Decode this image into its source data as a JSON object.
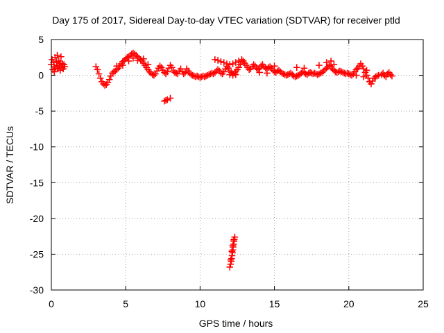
{
  "chart_data": {
    "type": "scatter",
    "title": "Day 175 of 2017, Sidereal Day-to-day VTEC variation (SDTVAR) for receiver ptld",
    "xlabel": "GPS time / hours",
    "ylabel": "SDTVAR / TECUs",
    "xlim": [
      0,
      25
    ],
    "ylim": [
      -30,
      5
    ],
    "xticks": [
      0,
      5,
      10,
      15,
      20,
      25
    ],
    "yticks": [
      5,
      0,
      -5,
      -10,
      -15,
      -20,
      -25,
      -30
    ],
    "xtick_labels": [
      "0",
      "5",
      "10",
      "15",
      "20",
      "25"
    ],
    "ytick_labels": [
      "5",
      "0",
      "-5",
      "-10",
      "-15",
      "-20",
      "-25",
      "-30"
    ],
    "grid": true,
    "marker": "+",
    "marker_color": "#ff0000",
    "series": [
      {
        "name": "ptld",
        "points": [
          [
            0.0,
            1.5
          ],
          [
            0.05,
            2.2
          ],
          [
            0.1,
            0.8
          ],
          [
            0.15,
            1.8
          ],
          [
            0.2,
            1.2
          ],
          [
            0.25,
            2.5
          ],
          [
            0.3,
            1.0
          ],
          [
            0.35,
            1.9
          ],
          [
            0.4,
            1.4
          ],
          [
            0.45,
            0.9
          ],
          [
            0.5,
            2.0
          ],
          [
            0.55,
            1.3
          ],
          [
            0.6,
            1.7
          ],
          [
            0.65,
            2.6
          ],
          [
            0.7,
            1.1
          ],
          [
            0.75,
            1.6
          ],
          [
            0.8,
            0.9
          ],
          [
            0.85,
            1.5
          ],
          [
            0.9,
            1.2
          ],
          [
            0.2,
            0.5
          ],
          [
            0.4,
            2.8
          ],
          [
            0.6,
            0.7
          ],
          [
            3.0,
            1.2
          ],
          [
            3.1,
            0.8
          ],
          [
            3.2,
            0.2
          ],
          [
            3.3,
            -0.4
          ],
          [
            3.4,
            -0.9
          ],
          [
            3.5,
            -1.2
          ],
          [
            3.6,
            -1.4
          ],
          [
            3.7,
            -1.3
          ],
          [
            3.8,
            -1.0
          ],
          [
            3.9,
            -0.6
          ],
          [
            4.0,
            -0.1
          ],
          [
            4.1,
            0.3
          ],
          [
            4.2,
            0.5
          ],
          [
            4.3,
            0.6
          ],
          [
            4.4,
            0.8
          ],
          [
            4.5,
            1.0
          ],
          [
            4.6,
            1.3
          ],
          [
            4.7,
            1.6
          ],
          [
            4.8,
            1.9
          ],
          [
            4.9,
            2.1
          ],
          [
            5.0,
            2.3
          ],
          [
            5.1,
            2.5
          ],
          [
            5.2,
            2.6
          ],
          [
            5.3,
            2.8
          ],
          [
            5.4,
            3.0
          ],
          [
            5.5,
            3.1
          ],
          [
            5.6,
            3.0
          ],
          [
            5.7,
            2.8
          ],
          [
            5.8,
            2.6
          ],
          [
            5.9,
            2.4
          ],
          [
            6.0,
            2.2
          ],
          [
            6.1,
            2.0
          ],
          [
            6.2,
            1.7
          ],
          [
            6.3,
            1.4
          ],
          [
            6.4,
            1.1
          ],
          [
            6.5,
            0.8
          ],
          [
            6.6,
            0.5
          ],
          [
            6.7,
            0.3
          ],
          [
            6.8,
            0.1
          ],
          [
            6.9,
            0.0
          ],
          [
            7.0,
            0.2
          ],
          [
            7.1,
            0.6
          ],
          [
            7.2,
            1.0
          ],
          [
            7.3,
            1.3
          ],
          [
            7.4,
            1.1
          ],
          [
            7.5,
            0.7
          ],
          [
            7.6,
            0.4
          ],
          [
            7.7,
            0.2
          ],
          [
            7.8,
            0.5
          ],
          [
            7.9,
            1.0
          ],
          [
            8.0,
            1.4
          ],
          [
            8.1,
            1.1
          ],
          [
            8.2,
            0.6
          ],
          [
            8.3,
            0.4
          ],
          [
            8.4,
            0.3
          ],
          [
            5.2,
            2.0
          ],
          [
            5.5,
            2.4
          ],
          [
            5.8,
            2.1
          ],
          [
            6.2,
            2.3
          ],
          [
            6.5,
            1.5
          ],
          [
            4.8,
            1.4
          ],
          [
            4.4,
            1.3
          ],
          [
            7.6,
            -3.6
          ],
          [
            7.8,
            -3.4
          ],
          [
            8.0,
            -3.2
          ],
          [
            7.7,
            -3.5
          ],
          [
            8.5,
            0.2
          ],
          [
            8.6,
            0.6
          ],
          [
            8.7,
            0.9
          ],
          [
            8.8,
            0.5
          ],
          [
            8.9,
            0.2
          ],
          [
            9.0,
            0.4
          ],
          [
            9.1,
            0.9
          ],
          [
            9.2,
            0.6
          ],
          [
            9.3,
            0.3
          ],
          [
            9.4,
            0.1
          ],
          [
            9.5,
            0.0
          ],
          [
            9.6,
            -0.1
          ],
          [
            9.7,
            -0.2
          ],
          [
            9.8,
            -0.1
          ],
          [
            9.9,
            -0.2
          ],
          [
            10.0,
            -0.3
          ],
          [
            10.1,
            -0.2
          ],
          [
            10.2,
            -0.1
          ],
          [
            10.3,
            -0.2
          ],
          [
            10.4,
            -0.1
          ],
          [
            10.5,
            0.0
          ],
          [
            10.6,
            0.1
          ],
          [
            10.7,
            0.2
          ],
          [
            10.8,
            0.3
          ],
          [
            10.9,
            0.2
          ],
          [
            11.0,
            0.4
          ],
          [
            11.1,
            0.6
          ],
          [
            11.2,
            0.8
          ],
          [
            11.3,
            0.6
          ],
          [
            11.4,
            0.3
          ],
          [
            11.5,
            0.2
          ],
          [
            11.6,
            0.5
          ],
          [
            11.7,
            0.9
          ],
          [
            11.8,
            1.2
          ],
          [
            11.9,
            1.0
          ],
          [
            12.0,
            0.6
          ],
          [
            12.1,
            0.4
          ],
          [
            12.2,
            0.2
          ],
          [
            12.3,
            0.3
          ],
          [
            12.4,
            0.5
          ],
          [
            12.5,
            0.8
          ],
          [
            12.6,
            1.1
          ],
          [
            12.7,
            1.5
          ],
          [
            12.8,
            1.9
          ],
          [
            12.9,
            2.0
          ],
          [
            13.0,
            1.7
          ],
          [
            11.0,
            2.2
          ],
          [
            11.2,
            2.1
          ],
          [
            11.4,
            1.9
          ],
          [
            11.6,
            1.8
          ],
          [
            11.8,
            1.6
          ],
          [
            12.0,
            1.5
          ],
          [
            12.2,
            1.6
          ],
          [
            12.4,
            1.8
          ],
          [
            12.6,
            2.0
          ],
          [
            12.8,
            2.2
          ],
          [
            12.0,
            0.1
          ],
          [
            12.2,
            0.0
          ],
          [
            12.4,
            0.1
          ],
          [
            13.1,
            1.4
          ],
          [
            13.2,
            1.1
          ],
          [
            13.3,
            0.8
          ],
          [
            13.4,
            0.9
          ],
          [
            13.5,
            1.2
          ],
          [
            13.6,
            1.5
          ],
          [
            13.7,
            1.3
          ],
          [
            13.8,
            1.0
          ],
          [
            13.9,
            0.8
          ],
          [
            14.0,
            1.0
          ],
          [
            14.1,
            1.3
          ],
          [
            14.2,
            1.5
          ],
          [
            14.3,
            1.2
          ],
          [
            14.4,
            1.0
          ],
          [
            14.5,
            0.9
          ],
          [
            14.6,
            1.1
          ],
          [
            14.7,
            1.2
          ],
          [
            14.8,
            1.0
          ],
          [
            14.9,
            0.7
          ],
          [
            15.0,
            0.5
          ],
          [
            15.1,
            0.4
          ],
          [
            15.2,
            0.6
          ],
          [
            15.3,
            0.7
          ],
          [
            15.4,
            0.5
          ],
          [
            15.5,
            0.3
          ],
          [
            15.6,
            0.2
          ],
          [
            15.7,
            0.1
          ],
          [
            15.8,
            0.0
          ],
          [
            15.9,
            0.1
          ],
          [
            16.0,
            0.2
          ],
          [
            16.1,
            0.3
          ],
          [
            16.2,
            0.1
          ],
          [
            16.3,
            -0.1
          ],
          [
            16.4,
            -0.2
          ],
          [
            16.5,
            -0.1
          ],
          [
            16.6,
            0.0
          ],
          [
            16.7,
            0.1
          ],
          [
            16.8,
            0.3
          ],
          [
            16.9,
            0.5
          ],
          [
            17.0,
            0.4
          ],
          [
            17.1,
            0.2
          ],
          [
            17.2,
            0.1
          ],
          [
            17.3,
            0.3
          ],
          [
            17.4,
            0.4
          ],
          [
            17.5,
            0.3
          ],
          [
            17.6,
            0.2
          ],
          [
            17.7,
            0.3
          ],
          [
            17.8,
            0.2
          ],
          [
            17.9,
            0.1
          ],
          [
            18.0,
            0.2
          ],
          [
            18.1,
            0.3
          ],
          [
            18.2,
            0.4
          ],
          [
            18.3,
            0.6
          ],
          [
            18.4,
            0.8
          ],
          [
            18.5,
            1.0
          ],
          [
            18.6,
            1.2
          ],
          [
            18.7,
            1.4
          ],
          [
            18.8,
            1.2
          ],
          [
            18.9,
            0.9
          ],
          [
            19.0,
            0.7
          ],
          [
            19.1,
            0.5
          ],
          [
            19.2,
            0.4
          ],
          [
            19.3,
            0.5
          ],
          [
            19.4,
            0.6
          ],
          [
            19.5,
            0.5
          ],
          [
            19.6,
            0.4
          ],
          [
            19.7,
            0.3
          ],
          [
            19.8,
            0.2
          ],
          [
            19.9,
            0.3
          ],
          [
            20.0,
            0.2
          ],
          [
            20.1,
            0.1
          ],
          [
            20.2,
            0.0
          ],
          [
            20.3,
            0.2
          ],
          [
            20.4,
            0.5
          ],
          [
            20.5,
            0.8
          ],
          [
            20.6,
            1.0
          ],
          [
            20.7,
            1.3
          ],
          [
            20.8,
            1.6
          ],
          [
            20.9,
            1.3
          ],
          [
            21.0,
            0.9
          ],
          [
            21.1,
            0.4
          ],
          [
            21.2,
            0.0
          ],
          [
            21.3,
            -0.4
          ],
          [
            21.4,
            -0.9
          ],
          [
            21.5,
            -1.2
          ],
          [
            21.6,
            -0.8
          ],
          [
            21.7,
            -0.4
          ],
          [
            21.8,
            -0.2
          ],
          [
            21.9,
            -0.1
          ],
          [
            22.0,
            0.0
          ],
          [
            14.0,
            0.4
          ],
          [
            14.5,
            0.3
          ],
          [
            15.0,
            1.3
          ],
          [
            16.5,
            1.1
          ],
          [
            17.0,
            1.0
          ],
          [
            18.0,
            1.4
          ],
          [
            18.5,
            1.8
          ],
          [
            18.8,
            2.0
          ],
          [
            19.0,
            1.5
          ],
          [
            20.5,
            0.0
          ],
          [
            21.0,
            -0.2
          ],
          [
            21.2,
            0.7
          ],
          [
            22.2,
            0.1
          ],
          [
            22.3,
            0.3
          ],
          [
            22.4,
            0.0
          ],
          [
            22.5,
            -0.2
          ],
          [
            22.6,
            0.2
          ],
          [
            22.7,
            0.4
          ],
          [
            22.8,
            0.1
          ],
          [
            22.9,
            -0.1
          ],
          [
            12.0,
            -26.8
          ],
          [
            12.05,
            -26.4
          ],
          [
            12.1,
            -26.0
          ],
          [
            12.12,
            -25.6
          ],
          [
            12.15,
            -25.2
          ],
          [
            12.18,
            -24.8
          ],
          [
            12.2,
            -24.4
          ],
          [
            12.22,
            -24.0
          ],
          [
            12.25,
            -23.6
          ],
          [
            12.28,
            -23.2
          ],
          [
            12.3,
            -22.9
          ],
          [
            12.33,
            -22.6
          ],
          [
            12.06,
            -25.8
          ],
          [
            12.14,
            -24.6
          ],
          [
            12.2,
            -23.8
          ],
          [
            12.26,
            -23.0
          ]
        ]
      }
    ]
  }
}
